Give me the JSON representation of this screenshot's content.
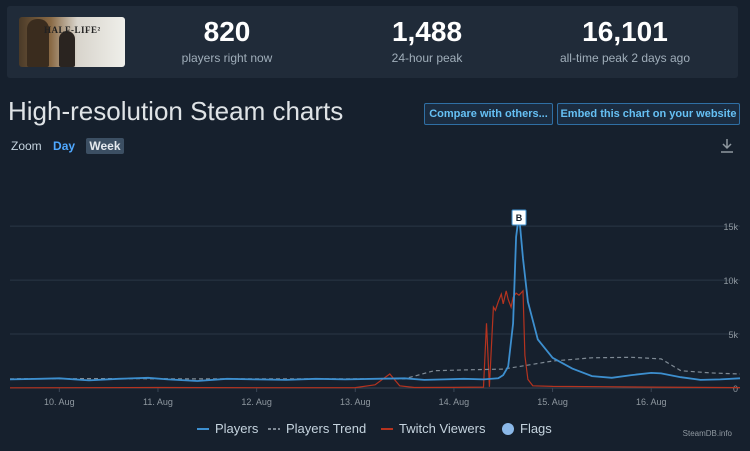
{
  "game": {
    "title": "HALF-LIFE 2",
    "logo_text": "HALF-LIFE²"
  },
  "stats": [
    {
      "value": "820",
      "label": "players right now"
    },
    {
      "value": "1,488",
      "label": "24-hour peak"
    },
    {
      "value": "16,101",
      "label": "all-time peak 2 days ago"
    }
  ],
  "page_title": "High-resolution Steam charts",
  "buttons": {
    "compare": "Compare with others...",
    "embed": "Embed this chart on your website"
  },
  "zoom": {
    "label": "Zoom",
    "day": "Day",
    "week": "Week"
  },
  "download_icon": "download-icon",
  "credit": "SteamDB.info",
  "colors": {
    "players": "#3d8fcf",
    "trend": "#7f8a95",
    "twitch": "#b5331f",
    "flags": "#8bb8e8",
    "accent": "#66c0f4"
  },
  "chart_data": {
    "type": "line",
    "x_ticks": [
      "10. Aug",
      "11. Aug",
      "12. Aug",
      "13. Aug",
      "14. Aug",
      "15. Aug",
      "16. Aug"
    ],
    "y_ticks": [
      "0",
      "5k",
      "10k",
      "15k"
    ],
    "ylim": [
      0,
      16500
    ],
    "xlim": [
      9.5,
      16.9
    ],
    "flag": {
      "label": "B",
      "x": 14.66
    },
    "series": [
      {
        "name": "Players",
        "style": "solid",
        "points": [
          [
            9.5,
            800
          ],
          [
            9.8,
            850
          ],
          [
            10.0,
            900
          ],
          [
            10.3,
            700
          ],
          [
            10.6,
            850
          ],
          [
            10.9,
            950
          ],
          [
            11.1,
            800
          ],
          [
            11.4,
            650
          ],
          [
            11.7,
            850
          ],
          [
            12.0,
            800
          ],
          [
            12.3,
            750
          ],
          [
            12.6,
            850
          ],
          [
            12.9,
            800
          ],
          [
            13.2,
            850
          ],
          [
            13.5,
            900
          ],
          [
            13.7,
            750
          ],
          [
            13.9,
            800
          ],
          [
            14.1,
            850
          ],
          [
            14.3,
            800
          ],
          [
            14.45,
            900
          ],
          [
            14.5,
            1200
          ],
          [
            14.55,
            2000
          ],
          [
            14.6,
            6000
          ],
          [
            14.63,
            14000
          ],
          [
            14.66,
            16101
          ],
          [
            14.7,
            12000
          ],
          [
            14.75,
            8000
          ],
          [
            14.85,
            4500
          ],
          [
            15.0,
            2800
          ],
          [
            15.2,
            1800
          ],
          [
            15.4,
            1100
          ],
          [
            15.6,
            950
          ],
          [
            15.8,
            1200
          ],
          [
            16.0,
            1400
          ],
          [
            16.1,
            1350
          ],
          [
            16.3,
            1000
          ],
          [
            16.5,
            750
          ],
          [
            16.7,
            800
          ],
          [
            16.9,
            900
          ]
        ]
      },
      {
        "name": "Players Trend",
        "style": "dashed",
        "points": [
          [
            9.5,
            850
          ],
          [
            10.5,
            870
          ],
          [
            11.5,
            840
          ],
          [
            12.5,
            850
          ],
          [
            13.5,
            850
          ],
          [
            13.8,
            1600
          ],
          [
            14.2,
            1700
          ],
          [
            14.5,
            1750
          ],
          [
            14.8,
            2200
          ],
          [
            15.0,
            2500
          ],
          [
            15.4,
            2800
          ],
          [
            15.8,
            2850
          ],
          [
            16.1,
            2700
          ],
          [
            16.3,
            1600
          ],
          [
            16.6,
            1400
          ],
          [
            16.9,
            1300
          ]
        ]
      },
      {
        "name": "Twitch Viewers",
        "style": "solid",
        "points": [
          [
            9.5,
            20
          ],
          [
            11.0,
            50
          ],
          [
            12.0,
            30
          ],
          [
            13.0,
            40
          ],
          [
            13.2,
            300
          ],
          [
            13.35,
            1300
          ],
          [
            13.45,
            200
          ],
          [
            13.6,
            50
          ],
          [
            14.0,
            60
          ],
          [
            14.3,
            80
          ],
          [
            14.33,
            6000
          ],
          [
            14.36,
            100
          ],
          [
            14.4,
            7500
          ],
          [
            14.42,
            7200
          ],
          [
            14.45,
            8000
          ],
          [
            14.48,
            8700
          ],
          [
            14.5,
            7800
          ],
          [
            14.53,
            9000
          ],
          [
            14.55,
            8200
          ],
          [
            14.58,
            7500
          ],
          [
            14.6,
            8400
          ],
          [
            14.63,
            8800
          ],
          [
            14.66,
            8600
          ],
          [
            14.7,
            9000
          ],
          [
            14.72,
            3000
          ],
          [
            14.75,
            800
          ],
          [
            14.8,
            200
          ],
          [
            15.0,
            150
          ],
          [
            15.5,
            120
          ],
          [
            16.0,
            80
          ],
          [
            16.5,
            60
          ],
          [
            16.9,
            40
          ]
        ]
      }
    ],
    "legend": [
      "Players",
      "Players Trend",
      "Twitch Viewers",
      "Flags"
    ]
  }
}
